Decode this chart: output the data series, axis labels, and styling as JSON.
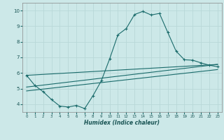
{
  "title": "",
  "xlabel": "Humidex (Indice chaleur)",
  "ylabel": "",
  "bg_color": "#cce8e8",
  "line_color": "#1a6b6b",
  "grid_color": "#b8d8d8",
  "x_ticks": [
    0,
    1,
    2,
    3,
    4,
    5,
    6,
    7,
    8,
    9,
    10,
    11,
    12,
    13,
    14,
    15,
    16,
    17,
    18,
    19,
    20,
    21,
    22,
    23
  ],
  "y_ticks": [
    4,
    5,
    6,
    7,
    8,
    9,
    10
  ],
  "ylim": [
    3.5,
    10.5
  ],
  "xlim": [
    -0.5,
    23.5
  ],
  "curve1_x": [
    0,
    1,
    2,
    3,
    4,
    5,
    6,
    7,
    8,
    9,
    10,
    11,
    12,
    13,
    14,
    15,
    16,
    17,
    18,
    19,
    20,
    21,
    22,
    23
  ],
  "curve1_y": [
    5.85,
    5.2,
    4.8,
    4.3,
    3.88,
    3.82,
    3.92,
    3.72,
    4.55,
    5.5,
    6.9,
    8.45,
    8.85,
    9.75,
    9.95,
    9.72,
    9.82,
    8.6,
    7.4,
    6.85,
    6.82,
    6.65,
    6.5,
    6.4
  ],
  "curve2_x": [
    0,
    23
  ],
  "curve2_y": [
    5.85,
    6.55
  ],
  "curve3_x": [
    0,
    23
  ],
  "curve3_y": [
    5.1,
    6.55
  ],
  "curve4_x": [
    0,
    23
  ],
  "curve4_y": [
    4.85,
    6.22
  ]
}
